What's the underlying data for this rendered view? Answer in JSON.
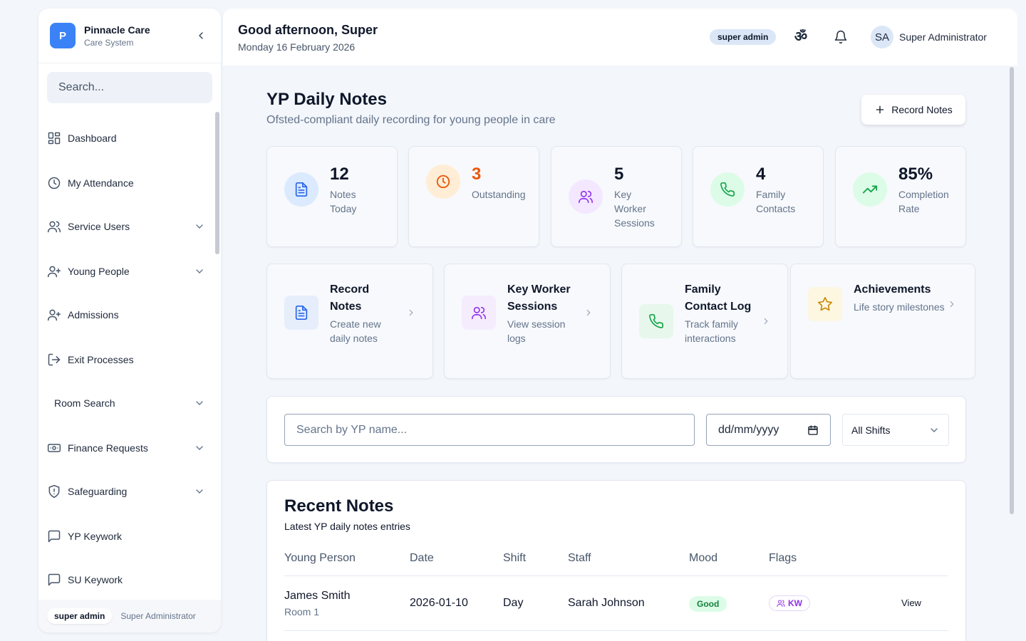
{
  "sidebar": {
    "brand_initial": "P",
    "brand_name": "Pinnacle Care",
    "brand_sub": "Care System",
    "search_placeholder": "Search...",
    "items": [
      {
        "label": "Dashboard",
        "icon": "grid-icon",
        "expandable": false
      },
      {
        "label": "My Attendance",
        "icon": "clock-icon",
        "expandable": false
      },
      {
        "label": "Service Users",
        "icon": "users-icon",
        "expandable": true
      },
      {
        "label": "Young People",
        "icon": "user-plus-icon",
        "expandable": true
      },
      {
        "label": "Admissions",
        "icon": "user-plus-icon",
        "expandable": false
      },
      {
        "label": "Exit Processes",
        "icon": "log-out-icon",
        "expandable": false
      },
      {
        "label": "Room Search",
        "icon": "",
        "expandable": true
      },
      {
        "label": "Finance Requests",
        "icon": "banknote-icon",
        "expandable": true
      },
      {
        "label": "Safeguarding",
        "icon": "shield-icon",
        "expandable": true
      },
      {
        "label": "YP Keywork",
        "icon": "message-square-icon",
        "expandable": false
      },
      {
        "label": "SU Keywork",
        "icon": "message-square-icon",
        "expandable": false
      }
    ],
    "footer_role": "super admin",
    "footer_name": "Super Administrator"
  },
  "topbar": {
    "greeting": "Good afternoon, Super",
    "date": "Monday 16 February 2026",
    "role_badge": "super admin",
    "avatar_initials": "SA",
    "user_name": "Super Administrator"
  },
  "page": {
    "title": "YP Daily Notes",
    "subtitle": "Ofsted-compliant daily recording for young people in care",
    "record_button": "Record Notes"
  },
  "stats": [
    {
      "value": "12",
      "label": "Notes Today",
      "icon": "file-text-icon",
      "color": "#2563eb",
      "bg": "#dbeafe"
    },
    {
      "value": "3",
      "label": "Outstanding",
      "icon": "clock-icon",
      "color": "#ea580c",
      "bg": "#ffedd5"
    },
    {
      "value": "5",
      "label": "Key Worker Sessions",
      "icon": "users-icon",
      "color": "#9333ea",
      "bg": "#f3e8ff"
    },
    {
      "value": "4",
      "label": "Family Contacts",
      "icon": "phone-icon",
      "color": "#16a34a",
      "bg": "#dcfce7"
    },
    {
      "value": "85%",
      "label": "Completion Rate",
      "icon": "trending-up-icon",
      "color": "#16a34a",
      "bg": "#dcfce7"
    }
  ],
  "quick_actions": [
    {
      "title": "Record Notes",
      "subtitle": "Create new daily notes",
      "icon": "file-text-icon",
      "color": "#2563eb",
      "bg": "#e6eefc"
    },
    {
      "title": "Key Worker Sessions",
      "subtitle": "View session logs",
      "icon": "users-icon",
      "color": "#9333ea",
      "bg": "#f5ecfd"
    },
    {
      "title": "Family Contact Log",
      "subtitle": "Track family interactions",
      "icon": "phone-icon",
      "color": "#16a34a",
      "bg": "#e7f7ec"
    },
    {
      "title": "Achievements",
      "subtitle": "Life story milestones",
      "icon": "star-icon",
      "color": "#ca8a04",
      "bg": "#fdf6e1"
    }
  ],
  "filters": {
    "search_placeholder": "Search by YP name...",
    "date_placeholder": "dd/mm/yyyy",
    "shift_value": "All Shifts"
  },
  "recent_notes": {
    "title": "Recent Notes",
    "subtitle": "Latest YP daily notes entries",
    "columns": [
      "Young Person",
      "Date",
      "Shift",
      "Staff",
      "Mood",
      "Flags"
    ],
    "rows": [
      {
        "name": "James Smith",
        "room": "Room 1",
        "date": "2026-01-10",
        "shift": "Day",
        "staff": "Sarah Johnson",
        "mood": "Good",
        "flag": "KW",
        "action": "View"
      }
    ]
  },
  "colors": {
    "accent": "#3b82f6",
    "background": "#f3f6fb"
  }
}
